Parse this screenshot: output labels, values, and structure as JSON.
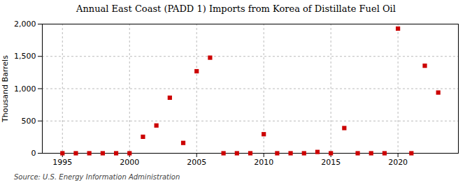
{
  "chart_data": {
    "type": "scatter",
    "title": "Annual East Coast (PADD 1) Imports from Korea of Distillate Fuel Oil",
    "ylabel": "Thousand Barrels",
    "annotations": [
      "Source: U.S. Energy Information Administration"
    ],
    "x": [
      1995,
      1996,
      1997,
      1998,
      1999,
      2000,
      2001,
      2002,
      2003,
      2004,
      2005,
      2006,
      2007,
      2008,
      2009,
      2010,
      2011,
      2012,
      2013,
      2014,
      2015,
      2016,
      2017,
      2018,
      2019,
      2020,
      2021,
      2022,
      2023
    ],
    "values": [
      0,
      0,
      0,
      0,
      0,
      0,
      255,
      430,
      860,
      160,
      1270,
      1480,
      0,
      0,
      0,
      295,
      0,
      0,
      0,
      20,
      0,
      390,
      0,
      0,
      0,
      1930,
      0,
      1355,
      940
    ],
    "color": "#cc0000",
    "marker": "square",
    "xlim": [
      1993.5,
      2024.5
    ],
    "xticks": [
      1995,
      2000,
      2005,
      2010,
      2015,
      2020
    ],
    "ylim": [
      0,
      2000
    ],
    "yticks": [
      0,
      500,
      {
        "value": 1000,
        "label": "1,000"
      },
      {
        "value": 1500,
        "label": "1,500"
      },
      {
        "value": 2000,
        "label": "2,000"
      }
    ],
    "grid": true
  }
}
